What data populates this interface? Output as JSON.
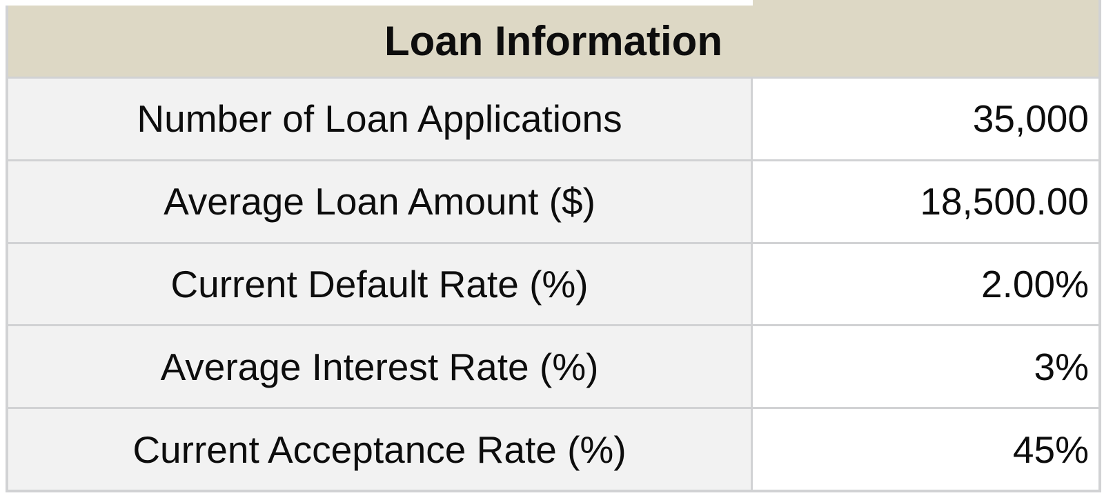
{
  "table": {
    "title": "Loan Information",
    "rows": [
      {
        "label": "Number of Loan Applications",
        "value": "35,000"
      },
      {
        "label": "Average Loan Amount ($)",
        "value": "18,500.00"
      },
      {
        "label": "Current Default Rate (%)",
        "value": "2.00%"
      },
      {
        "label": "Average Interest Rate (%)",
        "value": "3%"
      },
      {
        "label": "Current Acceptance Rate (%)",
        "value": "45%"
      }
    ],
    "colors": {
      "header_bg": "#ddd8c5",
      "label_bg": "#f2f2f2",
      "value_bg": "#ffffff",
      "border": "#d1d2d4",
      "text": "#0d0d0d"
    }
  },
  "chart_data": {
    "type": "table",
    "title": "Loan Information",
    "rows": [
      [
        "Number of Loan Applications",
        "35,000"
      ],
      [
        "Average Loan Amount ($)",
        "18,500.00"
      ],
      [
        "Current Default Rate (%)",
        "2.00%"
      ],
      [
        "Average Interest Rate (%)",
        "3%"
      ],
      [
        "Current Acceptance Rate (%)",
        "45%"
      ]
    ],
    "values": {
      "number_of_loan_applications": 35000,
      "average_loan_amount_usd": 18500.0,
      "current_default_rate_pct": 2.0,
      "average_interest_rate_pct": 3,
      "current_acceptance_rate_pct": 45
    }
  }
}
